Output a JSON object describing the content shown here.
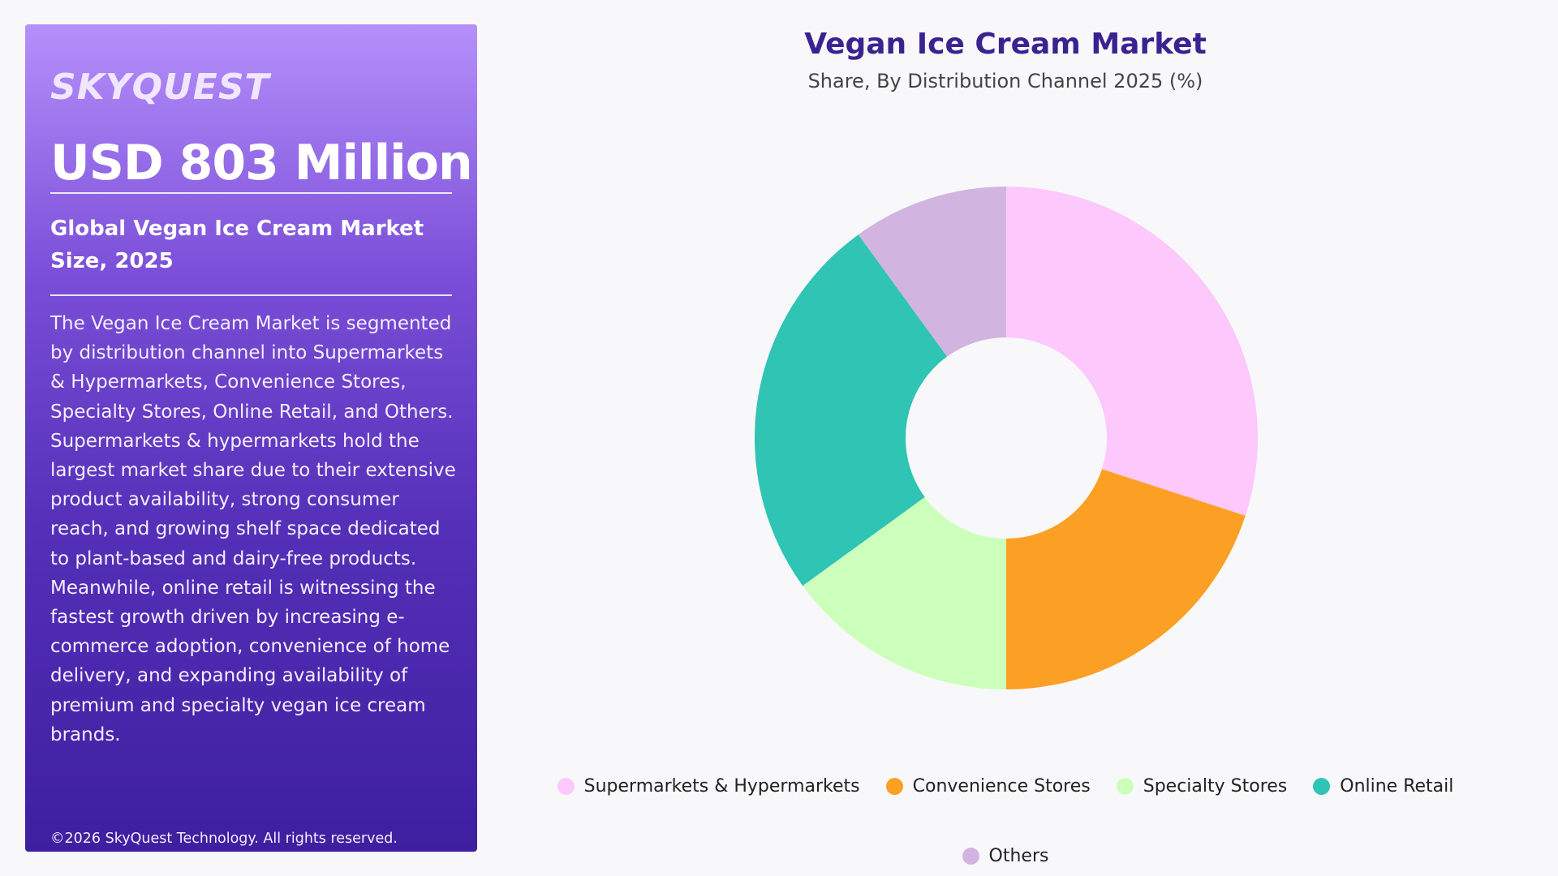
{
  "panel": {
    "logo": "SKYQUEST",
    "headline": "USD 803 Million",
    "subtitle": "Global Vegan Ice Cream Market Size, 2025",
    "description": "The Vegan Ice Cream Market is segmented by distribution channel into Supermarkets & Hypermarkets, Convenience Stores, Specialty Stores, Online Retail, and Others. Supermarkets & hypermarkets hold the largest market share due to their extensive product availability, strong consumer reach, and growing shelf space dedicated to plant-based and dairy-free products. Meanwhile, online retail is witnessing the fastest growth driven by increasing e-commerce adoption, convenience of home delivery, and expanding availability of premium and specialty vegan ice cream brands.",
    "copyright": "©2026 SkyQuest Technology. All rights reserved."
  },
  "chart_data": {
    "type": "pie",
    "variant": "donut",
    "title": "Vegan Ice Cream Market",
    "subtitle": "Share, By Distribution Channel 2025 (%)",
    "categories": [
      "Supermarkets & Hypermarkets",
      "Convenience Stores",
      "Specialty Stores",
      "Online Retail",
      "Others"
    ],
    "values": [
      30,
      20,
      15,
      25,
      10
    ],
    "colors": [
      "#fdc8fb",
      "#fba024",
      "#ccffbc",
      "#2fc4b4",
      "#d2b4e0"
    ],
    "start_angle_deg": 0,
    "direction": "clockwise",
    "legend": "bottom-center"
  }
}
